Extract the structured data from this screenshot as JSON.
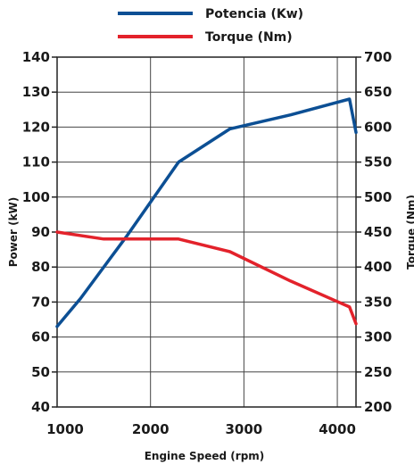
{
  "chart_data": {
    "type": "line",
    "xlabel": "Engine Speed (rpm)",
    "ylabel_left": "Power (kW)",
    "ylabel_right": "Torque (Nm)",
    "xlim": [
      1000,
      4200
    ],
    "ylim_left": [
      40,
      140
    ],
    "ylim_right": [
      200,
      700
    ],
    "x_ticks": [
      "1000",
      "2000",
      "3000",
      "4000"
    ],
    "y_left_ticks": [
      "40",
      "50",
      "60",
      "70",
      "80",
      "90",
      "100",
      "110",
      "120",
      "130",
      "140"
    ],
    "y_right_ticks": [
      "200",
      "250",
      "300",
      "350",
      "400",
      "450",
      "500",
      "550",
      "600",
      "650",
      "700"
    ],
    "grid": true,
    "legend_position": "top",
    "series": [
      {
        "name": "Potencia (Kw)",
        "axis": "left",
        "color": "#0c4f94",
        "x": [
          1000,
          1250,
          1750,
          2300,
          2850,
          3500,
          4130,
          4200
        ],
        "y": [
          63,
          71,
          89,
          110,
          119.5,
          123.5,
          128,
          118.5
        ]
      },
      {
        "name": "Torque (Nm)",
        "axis": "right",
        "color": "#e3222b",
        "x": [
          1000,
          1500,
          2000,
          2300,
          2850,
          3500,
          4130,
          4200
        ],
        "y": [
          450,
          440,
          440,
          440,
          422,
          380,
          343,
          319
        ]
      }
    ]
  }
}
